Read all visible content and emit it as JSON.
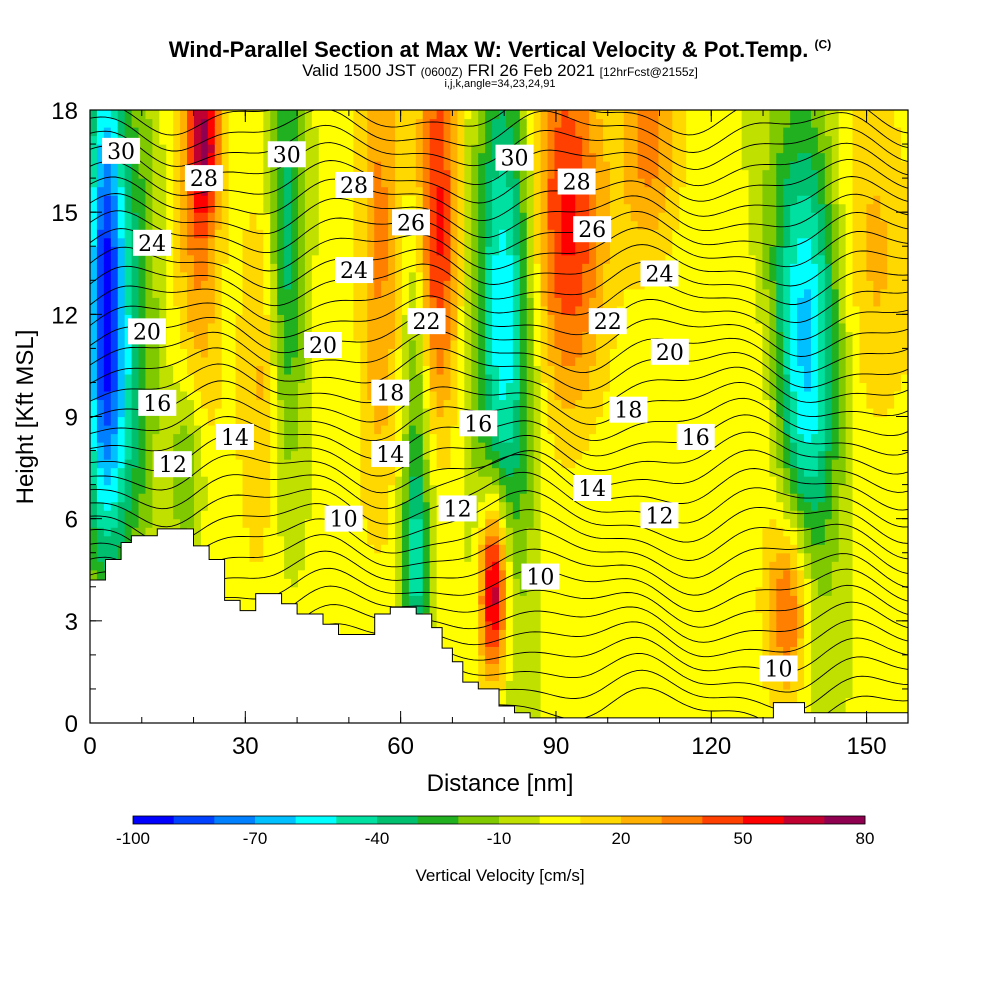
{
  "chart_data": {
    "type": "heatmap",
    "title": "Wind-Parallel Section at Max W: Vertical Velocity & Pot.Temp.",
    "title_mark": "(C)",
    "subtitle_valid": "Valid 1500 JST",
    "subtitle_zulu": "(0600Z)",
    "subtitle_date": "FRI 26 Feb 2021",
    "subtitle_fcst": "[12hrFcst@2155z]",
    "subtitle_indices": "i,j,k,angle=34,23,24,91",
    "xlabel": "Distance [nm]",
    "ylabel": "Height [Kft MSL]",
    "xlim": [
      0,
      158
    ],
    "ylim": [
      0,
      18
    ],
    "x_ticks": [
      "0",
      "30",
      "60",
      "90",
      "120",
      "150"
    ],
    "y_ticks": [
      "0",
      "3",
      "6",
      "9",
      "12",
      "15",
      "18"
    ],
    "colorbar": {
      "label": "Vertical Velocity [cm/s]",
      "tick_labels": [
        "-100",
        "-70",
        "-40",
        "-10",
        "20",
        "50",
        "80"
      ],
      "range": [
        -100,
        80
      ],
      "step": 10,
      "colors": [
        "#0000ff",
        "#0040ff",
        "#0080ff",
        "#00c0ff",
        "#00ffff",
        "#00e0a0",
        "#00c070",
        "#20b020",
        "#80c800",
        "#c0e000",
        "#ffff00",
        "#ffd800",
        "#ffb000",
        "#ff8000",
        "#ff4000",
        "#ff0000",
        "#c00030",
        "#900050",
        "#600080"
      ]
    },
    "terrain_profile": [
      [
        0,
        4.2
      ],
      [
        3,
        4.2
      ],
      [
        3,
        4.8
      ],
      [
        6,
        4.8
      ],
      [
        6,
        5.3
      ],
      [
        8,
        5.3
      ],
      [
        8,
        5.5
      ],
      [
        13,
        5.5
      ],
      [
        13,
        5.7
      ],
      [
        20,
        5.7
      ],
      [
        20,
        5.2
      ],
      [
        23,
        5.2
      ],
      [
        23,
        4.8
      ],
      [
        26,
        4.8
      ],
      [
        26,
        3.6
      ],
      [
        29,
        3.6
      ],
      [
        29,
        3.3
      ],
      [
        32,
        3.3
      ],
      [
        32,
        3.8
      ],
      [
        37,
        3.8
      ],
      [
        37,
        3.5
      ],
      [
        40,
        3.5
      ],
      [
        40,
        3.2
      ],
      [
        45,
        3.2
      ],
      [
        45,
        2.9
      ],
      [
        48,
        2.9
      ],
      [
        48,
        2.6
      ],
      [
        55,
        2.6
      ],
      [
        55,
        3.2
      ],
      [
        58,
        3.2
      ],
      [
        58,
        3.4
      ],
      [
        63,
        3.4
      ],
      [
        63,
        3.2
      ],
      [
        66,
        3.2
      ],
      [
        66,
        2.8
      ],
      [
        68,
        2.8
      ],
      [
        68,
        2.2
      ],
      [
        70,
        2.2
      ],
      [
        70,
        1.8
      ],
      [
        72,
        1.8
      ],
      [
        72,
        1.2
      ],
      [
        75,
        1.2
      ],
      [
        75,
        1.0
      ],
      [
        79,
        1.0
      ],
      [
        79,
        0.5
      ],
      [
        82,
        0.5
      ],
      [
        82,
        0.3
      ],
      [
        85,
        0.3
      ],
      [
        85,
        0.15
      ],
      [
        132,
        0.15
      ],
      [
        132,
        0.6
      ],
      [
        138,
        0.6
      ],
      [
        138,
        0.3
      ],
      [
        158,
        0.3
      ],
      [
        158,
        0
      ],
      [
        0,
        0
      ]
    ],
    "vertical_velocity_cells": [
      {
        "x": 3,
        "y": 14.0,
        "sx": 2.5,
        "sy": 5.0,
        "w": -70
      },
      {
        "x": 3,
        "y": 9.5,
        "sx": 3.5,
        "sy": 4.0,
        "w": -40
      },
      {
        "x": 9,
        "y": 12.0,
        "sx": 3.0,
        "sy": 5.0,
        "w": -30
      },
      {
        "x": 21,
        "y": 14.0,
        "sx": 3.0,
        "sy": 4.5,
        "w": 30
      },
      {
        "x": 22,
        "y": 17.0,
        "sx": 2.0,
        "sy": 1.5,
        "w": 50
      },
      {
        "x": 19,
        "y": 7.5,
        "sx": 2.5,
        "sy": 2.0,
        "w": -30
      },
      {
        "x": 38,
        "y": 14.0,
        "sx": 2.5,
        "sy": 4.5,
        "w": -40
      },
      {
        "x": 33,
        "y": 10.0,
        "sx": 3.0,
        "sy": 4.0,
        "w": 20
      },
      {
        "x": 56,
        "y": 14.0,
        "sx": 3.0,
        "sy": 5.0,
        "w": 30
      },
      {
        "x": 63,
        "y": 10.0,
        "sx": 2.0,
        "sy": 4.0,
        "w": -30
      },
      {
        "x": 63,
        "y": 4.5,
        "sx": 2.0,
        "sy": 2.0,
        "w": -40
      },
      {
        "x": 67,
        "y": 15.0,
        "sx": 3.0,
        "sy": 4.5,
        "w": 50
      },
      {
        "x": 80,
        "y": 12.0,
        "sx": 4.0,
        "sy": 6.0,
        "w": -60
      },
      {
        "x": 78,
        "y": 4.0,
        "sx": 2.0,
        "sy": 2.0,
        "w": 80
      },
      {
        "x": 92,
        "y": 15.0,
        "sx": 5.0,
        "sy": 4.0,
        "w": 50
      },
      {
        "x": 108,
        "y": 17.0,
        "sx": 4.0,
        "sy": 2.5,
        "w": 30
      },
      {
        "x": 138,
        "y": 11.0,
        "sx": 5.0,
        "sy": 5.0,
        "w": -70
      },
      {
        "x": 131,
        "y": 8.5,
        "sx": 4.0,
        "sy": 3.0,
        "w": 20
      },
      {
        "x": 135,
        "y": 3.5,
        "sx": 3.0,
        "sy": 2.0,
        "w": 50
      },
      {
        "x": 150,
        "y": 14.0,
        "sx": 6.0,
        "sy": 4.0,
        "w": 20
      }
    ],
    "theta_contour_labels": [
      {
        "text": "30",
        "x": 6,
        "y": 16.8
      },
      {
        "text": "28",
        "x": 22,
        "y": 16.0
      },
      {
        "text": "30",
        "x": 38,
        "y": 16.7
      },
      {
        "text": "28",
        "x": 51,
        "y": 15.8
      },
      {
        "text": "30",
        "x": 82,
        "y": 16.6
      },
      {
        "text": "28",
        "x": 94,
        "y": 15.9
      },
      {
        "text": "26",
        "x": 62,
        "y": 14.7
      },
      {
        "text": "26",
        "x": 97,
        "y": 14.5
      },
      {
        "text": "24",
        "x": 12,
        "y": 14.1
      },
      {
        "text": "24",
        "x": 51,
        "y": 13.3
      },
      {
        "text": "24",
        "x": 110,
        "y": 13.2
      },
      {
        "text": "22",
        "x": 65,
        "y": 11.8
      },
      {
        "text": "22",
        "x": 100,
        "y": 11.8
      },
      {
        "text": "20",
        "x": 11,
        "y": 11.5
      },
      {
        "text": "20",
        "x": 45,
        "y": 11.1
      },
      {
        "text": "20",
        "x": 112,
        "y": 10.9
      },
      {
        "text": "18",
        "x": 58,
        "y": 9.7
      },
      {
        "text": "18",
        "x": 104,
        "y": 9.2
      },
      {
        "text": "16",
        "x": 13,
        "y": 9.4
      },
      {
        "text": "16",
        "x": 75,
        "y": 8.8
      },
      {
        "text": "16",
        "x": 117,
        "y": 8.4
      },
      {
        "text": "14",
        "x": 28,
        "y": 8.4
      },
      {
        "text": "14",
        "x": 58,
        "y": 7.9
      },
      {
        "text": "14",
        "x": 97,
        "y": 6.9
      },
      {
        "text": "12",
        "x": 16,
        "y": 7.6
      },
      {
        "text": "12",
        "x": 71,
        "y": 6.3
      },
      {
        "text": "12",
        "x": 110,
        "y": 6.1
      },
      {
        "text": "10",
        "x": 49,
        "y": 6.0
      },
      {
        "text": "10",
        "x": 87,
        "y": 4.3
      },
      {
        "text": "10",
        "x": 133,
        "y": 1.6
      }
    ]
  }
}
